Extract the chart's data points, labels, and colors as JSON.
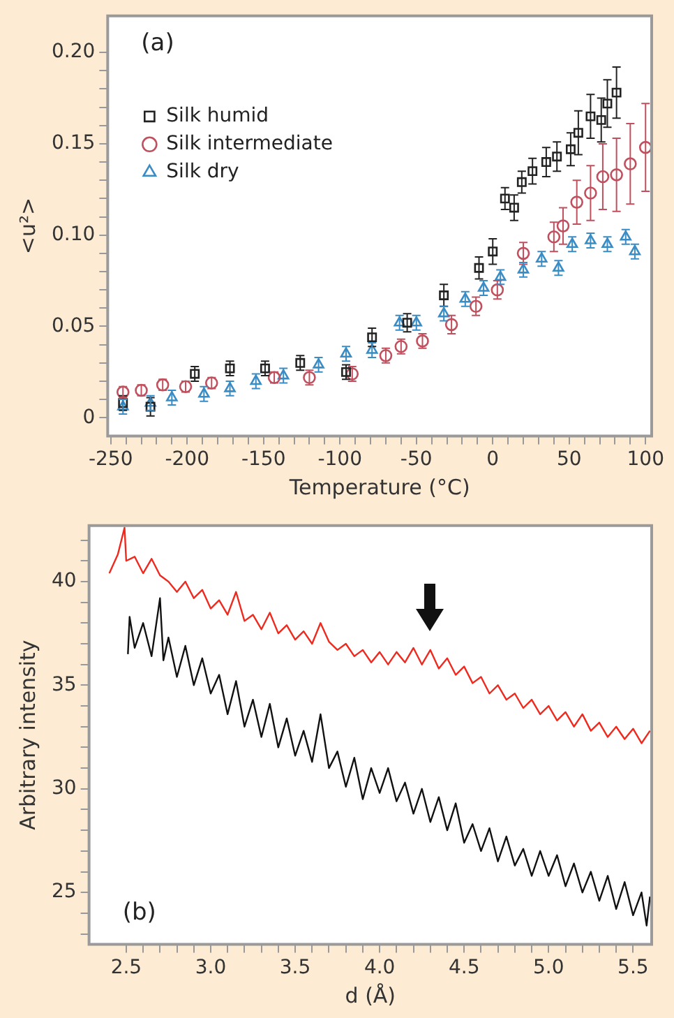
{
  "chart_data": [
    {
      "type": "scatter",
      "xlabel": "Temperature (°C)",
      "ylabel": "<u²>",
      "annotations": [
        "(a)"
      ],
      "xlim": [
        -252,
        104
      ],
      "ylim": [
        -0.01,
        0.22
      ],
      "xticks": [
        -250,
        {
          "value": -240,
          "label": null
        },
        {
          "value": -230,
          "label": null
        },
        {
          "value": -220,
          "label": null
        },
        {
          "value": -210,
          "label": null
        },
        -200,
        {
          "value": -190,
          "label": null
        },
        {
          "value": -180,
          "label": null
        },
        {
          "value": -170,
          "label": null
        },
        {
          "value": -160,
          "label": null
        },
        -150,
        {
          "value": -140,
          "label": null
        },
        {
          "value": -130,
          "label": null
        },
        {
          "value": -120,
          "label": null
        },
        {
          "value": -110,
          "label": null
        },
        -100,
        {
          "value": -90,
          "label": null
        },
        {
          "value": -80,
          "label": null
        },
        {
          "value": -70,
          "label": null
        },
        {
          "value": -60,
          "label": null
        },
        -50,
        {
          "value": -40,
          "label": null
        },
        {
          "value": -30,
          "label": null
        },
        {
          "value": -20,
          "label": null
        },
        {
          "value": -10,
          "label": null
        },
        0,
        {
          "value": 10,
          "label": null
        },
        {
          "value": 20,
          "label": null
        },
        {
          "value": 30,
          "label": null
        },
        {
          "value": 40,
          "label": null
        },
        50,
        {
          "value": 60,
          "label": null
        },
        {
          "value": 70,
          "label": null
        },
        {
          "value": 80,
          "label": null
        },
        {
          "value": 90,
          "label": null
        },
        100
      ],
      "yticks": [
        0,
        {
          "value": 0.01,
          "label": null
        },
        {
          "value": 0.02,
          "label": null
        },
        {
          "value": 0.03,
          "label": null
        },
        {
          "value": 0.04,
          "label": null
        },
        0.05,
        {
          "value": 0.06,
          "label": null
        },
        {
          "value": 0.07,
          "label": null
        },
        {
          "value": 0.08,
          "label": null
        },
        {
          "value": 0.09,
          "label": null
        },
        {
          "value": 0.1,
          "label": "0.10"
        },
        {
          "value": 0.11,
          "label": null
        },
        {
          "value": 0.12,
          "label": null
        },
        {
          "value": 0.13,
          "label": null
        },
        {
          "value": 0.14,
          "label": null
        },
        0.15,
        {
          "value": 0.16,
          "label": null
        },
        {
          "value": 0.17,
          "label": null
        },
        {
          "value": 0.18,
          "label": null
        },
        {
          "value": 0.19,
          "label": null
        },
        {
          "value": 0.2,
          "label": "0.20"
        }
      ],
      "grid": false,
      "legend": "top left",
      "series": [
        {
          "name": "Silk humid",
          "color": "#222222",
          "marker": "square",
          "x": [
            -242,
            -224,
            -195,
            -172,
            -149,
            -126,
            -96,
            -79,
            -56,
            -32,
            -9,
            0,
            8,
            14,
            19,
            26,
            35,
            42,
            51,
            56,
            64,
            71,
            75,
            81
          ],
          "values": [
            0.008,
            0.006,
            0.024,
            0.027,
            0.027,
            0.03,
            0.025,
            0.044,
            0.052,
            0.067,
            0.082,
            0.091,
            0.12,
            0.115,
            0.129,
            0.135,
            0.14,
            0.143,
            0.147,
            0.156,
            0.165,
            0.163,
            0.172,
            0.178
          ],
          "errors": [
            0.004,
            0.005,
            0.004,
            0.004,
            0.004,
            0.004,
            0.004,
            0.005,
            0.005,
            0.006,
            0.006,
            0.007,
            0.006,
            0.007,
            0.006,
            0.007,
            0.008,
            0.008,
            0.009,
            0.012,
            0.012,
            0.012,
            0.013,
            0.014
          ]
        },
        {
          "name": "Silk intermediate",
          "color": "#c0505e",
          "marker": "circle",
          "x": [
            -242,
            -230,
            -216,
            -201,
            -184,
            -143,
            -120,
            -92,
            -70,
            -60,
            -46,
            -27,
            -11,
            3,
            20,
            40,
            46,
            55,
            64,
            72,
            81,
            90,
            100
          ],
          "values": [
            0.014,
            0.015,
            0.018,
            0.017,
            0.019,
            0.022,
            0.022,
            0.024,
            0.034,
            0.039,
            0.042,
            0.051,
            0.061,
            0.07,
            0.09,
            0.099,
            0.105,
            0.118,
            0.123,
            0.132,
            0.133,
            0.139,
            0.148
          ],
          "errors": [
            0.003,
            0.003,
            0.003,
            0.003,
            0.003,
            0.003,
            0.004,
            0.004,
            0.004,
            0.004,
            0.004,
            0.005,
            0.005,
            0.005,
            0.006,
            0.008,
            0.01,
            0.012,
            0.015,
            0.018,
            0.02,
            0.022,
            0.024
          ]
        },
        {
          "name": "Silk dry",
          "color": "#3a8cc4",
          "marker": "triangle",
          "x": [
            -242,
            -224,
            -210,
            -189,
            -172,
            -155,
            -137,
            -114,
            -96,
            -79,
            -61,
            -50,
            -32,
            -18,
            -6,
            5,
            20,
            32,
            43,
            52,
            64,
            75,
            87,
            93
          ],
          "values": [
            0.006,
            0.008,
            0.011,
            0.013,
            0.016,
            0.02,
            0.023,
            0.029,
            0.035,
            0.037,
            0.052,
            0.052,
            0.057,
            0.065,
            0.071,
            0.077,
            0.081,
            0.087,
            0.082,
            0.095,
            0.097,
            0.095,
            0.099,
            0.091
          ],
          "errors": [
            0.004,
            0.004,
            0.004,
            0.004,
            0.004,
            0.004,
            0.004,
            0.004,
            0.004,
            0.004,
            0.004,
            0.004,
            0.004,
            0.004,
            0.004,
            0.004,
            0.004,
            0.004,
            0.004,
            0.004,
            0.004,
            0.004,
            0.004,
            0.004
          ]
        }
      ]
    },
    {
      "type": "line",
      "xlabel": "d (Å)",
      "ylabel": "Arbitrary intensity",
      "annotations": [
        "(b)"
      ],
      "xlim": [
        2.28,
        5.61
      ],
      "ylim": [
        22.5,
        42.7
      ],
      "marker": "none",
      "line_style": "solid",
      "grid": false,
      "xticks": [
        2.5,
        {
          "value": 2.6,
          "label": null
        },
        {
          "value": 2.7,
          "label": null
        },
        {
          "value": 2.8,
          "label": null
        },
        {
          "value": 2.9,
          "label": null
        },
        {
          "value": 3,
          "label": "3.0"
        },
        {
          "value": 3.1,
          "label": null
        },
        {
          "value": 3.2,
          "label": null
        },
        {
          "value": 3.3,
          "label": null
        },
        {
          "value": 3.4,
          "label": null
        },
        3.5,
        {
          "value": 3.6,
          "label": null
        },
        {
          "value": 3.7,
          "label": null
        },
        {
          "value": 3.8,
          "label": null
        },
        {
          "value": 3.9,
          "label": null
        },
        {
          "value": 4,
          "label": "4.0"
        },
        {
          "value": 4.1,
          "label": null
        },
        {
          "value": 4.2,
          "label": null
        },
        {
          "value": 4.3,
          "label": null
        },
        {
          "value": 4.4,
          "label": null
        },
        4.5,
        {
          "value": 4.6,
          "label": null
        },
        {
          "value": 4.7,
          "label": null
        },
        {
          "value": 4.8,
          "label": null
        },
        {
          "value": 4.9,
          "label": null
        },
        {
          "value": 5,
          "label": "5.0"
        },
        {
          "value": 5.1,
          "label": null
        },
        {
          "value": 5.2,
          "label": null
        },
        {
          "value": 5.3,
          "label": null
        },
        {
          "value": 5.4,
          "label": null
        },
        5.5
      ],
      "yticks": [
        {
          "value": 23,
          "label": null
        },
        {
          "value": 24,
          "label": null
        },
        25,
        {
          "value": 26,
          "label": null
        },
        {
          "value": 27,
          "label": null
        },
        {
          "value": 28,
          "label": null
        },
        {
          "value": 29,
          "label": null
        },
        30,
        {
          "value": 31,
          "label": null
        },
        {
          "value": 32,
          "label": null
        },
        {
          "value": 33,
          "label": null
        },
        {
          "value": 34,
          "label": null
        },
        35,
        {
          "value": 36,
          "label": null
        },
        {
          "value": 37,
          "label": null
        },
        {
          "value": 38,
          "label": null
        },
        {
          "value": 39,
          "label": null
        },
        40,
        {
          "value": 41,
          "label": null
        },
        {
          "value": 42,
          "label": null
        }
      ],
      "series": [
        {
          "color": "#ee2a1f",
          "x": [
            2.4,
            2.45,
            2.49,
            2.5,
            2.55,
            2.6,
            2.65,
            2.7,
            2.75,
            2.8,
            2.85,
            2.9,
            2.95,
            3.0,
            3.05,
            3.1,
            3.15,
            3.2,
            3.25,
            3.3,
            3.35,
            3.4,
            3.45,
            3.5,
            3.55,
            3.6,
            3.65,
            3.7,
            3.75,
            3.8,
            3.85,
            3.9,
            3.95,
            4.0,
            4.05,
            4.1,
            4.15,
            4.2,
            4.25,
            4.3,
            4.35,
            4.4,
            4.45,
            4.5,
            4.55,
            4.6,
            4.65,
            4.7,
            4.75,
            4.8,
            4.85,
            4.9,
            4.95,
            5.0,
            5.05,
            5.1,
            5.15,
            5.2,
            5.25,
            5.3,
            5.35,
            5.4,
            5.45,
            5.5,
            5.55,
            5.6
          ],
          "values": [
            40.4,
            41.3,
            42.6,
            41.0,
            41.2,
            40.4,
            41.1,
            40.3,
            40.0,
            39.5,
            40.0,
            39.2,
            39.6,
            38.7,
            39.1,
            38.4,
            39.5,
            38.1,
            38.4,
            37.7,
            38.5,
            37.5,
            37.9,
            37.2,
            37.6,
            37.0,
            38.0,
            37.1,
            36.7,
            37.0,
            36.4,
            36.7,
            36.1,
            36.6,
            36.0,
            36.6,
            36.1,
            36.8,
            36.0,
            36.7,
            35.8,
            36.3,
            35.5,
            35.9,
            35.1,
            35.4,
            34.6,
            35.0,
            34.3,
            34.6,
            33.9,
            34.3,
            33.6,
            34.0,
            33.3,
            33.7,
            33.0,
            33.6,
            32.8,
            33.2,
            32.5,
            33.0,
            32.4,
            32.9,
            32.2,
            32.8
          ]
        },
        {
          "color": "#111111",
          "x": [
            2.51,
            2.52,
            2.55,
            2.6,
            2.65,
            2.7,
            2.72,
            2.75,
            2.8,
            2.85,
            2.9,
            2.95,
            3.0,
            3.05,
            3.1,
            3.15,
            3.2,
            3.25,
            3.3,
            3.35,
            3.4,
            3.45,
            3.5,
            3.55,
            3.6,
            3.65,
            3.7,
            3.75,
            3.8,
            3.85,
            3.9,
            3.95,
            4.0,
            4.05,
            4.1,
            4.15,
            4.2,
            4.25,
            4.3,
            4.35,
            4.4,
            4.45,
            4.5,
            4.55,
            4.6,
            4.65,
            4.7,
            4.75,
            4.8,
            4.85,
            4.9,
            4.95,
            5.0,
            5.05,
            5.1,
            5.15,
            5.2,
            5.25,
            5.3,
            5.35,
            5.4,
            5.45,
            5.5,
            5.55,
            5.58,
            5.6
          ],
          "values": [
            36.5,
            38.3,
            36.8,
            38.0,
            36.4,
            39.2,
            36.2,
            37.3,
            35.4,
            36.9,
            35.0,
            36.3,
            34.6,
            35.5,
            33.6,
            35.2,
            33.0,
            34.3,
            32.5,
            34.1,
            32.0,
            33.4,
            31.6,
            32.8,
            31.3,
            33.6,
            31.0,
            31.8,
            30.1,
            31.5,
            29.5,
            31.0,
            29.8,
            31.0,
            29.4,
            30.3,
            28.8,
            30.0,
            28.4,
            29.6,
            28.0,
            29.3,
            27.4,
            28.3,
            27.0,
            28.1,
            26.5,
            27.7,
            26.3,
            27.1,
            25.8,
            27.0,
            25.8,
            26.8,
            25.3,
            26.4,
            25.0,
            26.0,
            24.6,
            25.8,
            24.2,
            25.5,
            23.9,
            25.0,
            23.4,
            24.8
          ]
        }
      ]
    }
  ]
}
